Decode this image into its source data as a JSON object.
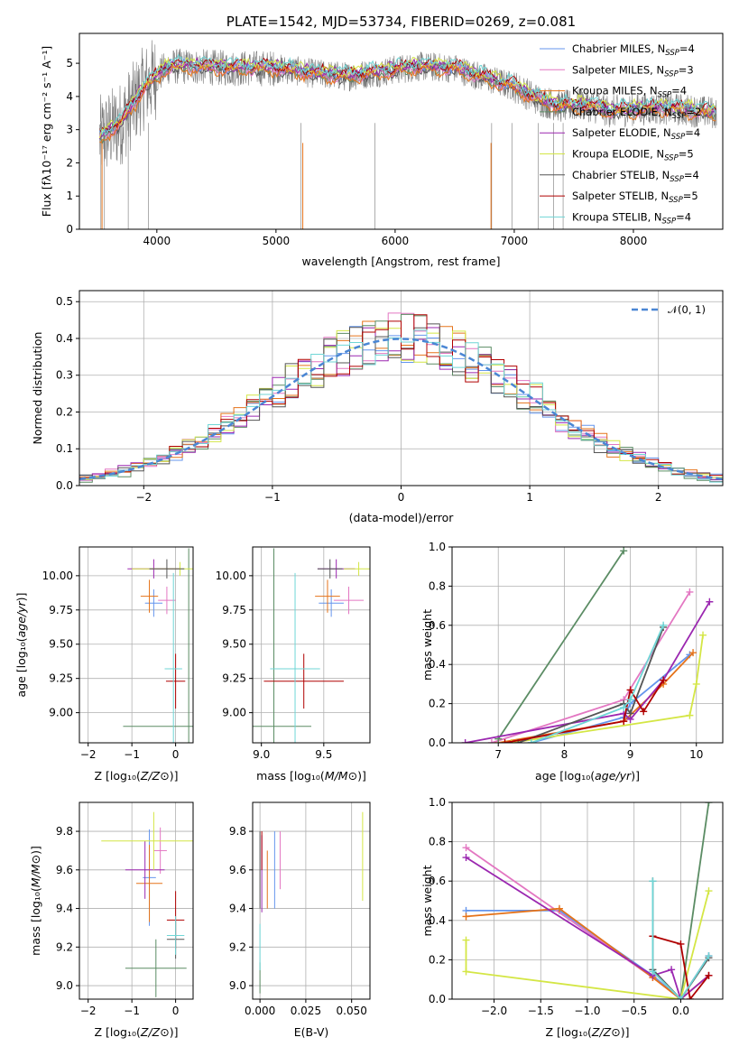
{
  "colors": [
    "#6495ed",
    "#e377c2",
    "#e5731a",
    "#5b8c64",
    "#9b27b0",
    "#d4e645",
    "#555555",
    "#b00000",
    "#6fd6d6"
  ],
  "chart_data": [
    {
      "id": "spectrum",
      "type": "line",
      "title": "PLATE=1542, MJD=53734, FIBERID=0269, z=0.081",
      "xlabel": "wavelength [Angstrom, rest frame]",
      "ylabel": "Flux [fλ10⁻¹⁷ erg cm⁻² s⁻¹ A⁻¹]",
      "xlim": [
        3350,
        8750
      ],
      "ylim": [
        0,
        5.9
      ],
      "xticks": [
        "4000",
        "5000",
        "6000",
        "7000",
        "8000"
      ],
      "yticks": [
        "0",
        "1",
        "2",
        "3",
        "4",
        "5"
      ],
      "legend_position": "right",
      "legend": [
        "Chabrier MILES, N_SSP=4",
        "Salpeter MILES, N_SSP=3",
        "Kroupa MILES, N_SSP=4",
        "Chabrier ELODIE, N_SSP=2",
        "Salpeter ELODIE, N_SSP=4",
        "Kroupa ELODIE, N_SSP=5",
        "Chabrier STELIB, N_SSP=4",
        "Salpeter STELIB, N_SSP=5",
        "Kroupa STELIB, N_SSP=4"
      ],
      "legend_text": [
        [
          "Chabrier MILES, N",
          "SSP",
          "=4"
        ],
        [
          "Salpeter MILES, N",
          "SSP",
          "=3"
        ],
        [
          "Kroupa MILES, N",
          "SSP",
          "=4"
        ],
        [
          "Chabrier ELODIE, N",
          "SSP",
          "=2"
        ],
        [
          "Salpeter ELODIE, N",
          "SSP",
          "=4"
        ],
        [
          "Kroupa ELODIE, N",
          "SSP",
          "=5"
        ],
        [
          "Chabrier STELIB, N",
          "SSP",
          "=4"
        ],
        [
          "Salpeter STELIB, N",
          "SSP",
          "=5"
        ],
        [
          "Kroupa STELIB, N",
          "SSP",
          "=4"
        ]
      ],
      "continuum": {
        "x": [
          3500,
          3700,
          3900,
          4100,
          4300,
          4600,
          5000,
          5300,
          5600,
          5900,
          6200,
          6500,
          6800,
          7000,
          7200,
          7400,
          7600,
          7800,
          8000,
          8200,
          8400,
          8700
        ],
        "y": [
          2.7,
          3.2,
          4.3,
          4.9,
          4.9,
          4.85,
          4.85,
          4.7,
          4.6,
          4.75,
          4.9,
          4.85,
          4.5,
          4.3,
          3.9,
          3.7,
          3.75,
          3.55,
          3.6,
          3.65,
          3.6,
          3.5
        ]
      }
    },
    {
      "id": "residuals",
      "type": "step",
      "xlabel": "(data-model)/error",
      "ylabel": "Normed distribution",
      "xlim": [
        -2.5,
        2.5
      ],
      "ylim": [
        0,
        0.53
      ],
      "xticks": [
        "−2",
        "−1",
        "0",
        "1",
        "2"
      ],
      "yticks": [
        "0.0",
        "0.1",
        "0.2",
        "0.3",
        "0.4",
        "0.5"
      ],
      "legend": [
        "𝒩(0, 1)"
      ],
      "legend_position": "upper right",
      "bin_width": 0.1,
      "x_start": -2.5,
      "reference": "normal(0,1)"
    },
    {
      "id": "age-vs-Z",
      "type": "errorbar",
      "xlabel_parts": [
        "Z [log₁₀(",
        "Z/Z⊙",
        ")]"
      ],
      "ylabel_parts": [
        "age  [log₁₀(",
        "age/yr",
        ")]"
      ],
      "xlim": [
        -2.2,
        0.4
      ],
      "ylim": [
        8.78,
        10.21
      ],
      "xticks": [
        "−2",
        "−1",
        "0"
      ],
      "yticks": [
        "9.00",
        "9.25",
        "9.50",
        "9.75",
        "10.00"
      ],
      "points": [
        {
          "c": 0,
          "x": -0.5,
          "y": 9.8,
          "xe": 0.2,
          "ye": 0.1
        },
        {
          "c": 1,
          "x": -0.2,
          "y": 9.82,
          "xe": 0.2,
          "ye": 0.1
        },
        {
          "c": 2,
          "x": -0.6,
          "y": 9.85,
          "xe": 0.2,
          "ye": 0.12
        },
        {
          "c": 3,
          "x": 0.3,
          "y": 8.9,
          "xe": 1.5,
          "ye": 1.3
        },
        {
          "c": 4,
          "x": -0.5,
          "y": 10.05,
          "xe": 0.6,
          "ye": 0.07
        },
        {
          "c": 5,
          "x": 0.1,
          "y": 10.05,
          "xe": 1.1,
          "ye": 0.05
        },
        {
          "c": 6,
          "x": -0.2,
          "y": 10.05,
          "xe": 0.4,
          "ye": 0.07
        },
        {
          "c": 7,
          "x": 0.0,
          "y": 9.23,
          "xe": 0.22,
          "ye": 0.2
        },
        {
          "c": 8,
          "x": -0.05,
          "y": 9.32,
          "xe": 0.2,
          "ye": 0.7
        }
      ]
    },
    {
      "id": "age-vs-mass",
      "type": "errorbar",
      "xlabel_parts": [
        "mass [log₁₀(",
        "M/M⊙",
        ")]"
      ],
      "ylabel_parts": [
        "",
        "",
        ""
      ],
      "xlim": [
        8.93,
        9.87
      ],
      "ylim": [
        8.78,
        10.21
      ],
      "xticks": [
        "9.0",
        "9.5"
      ],
      "yticks": [
        "9.00",
        "9.25",
        "9.50",
        "9.75",
        "10.00"
      ],
      "points": [
        {
          "c": 0,
          "x": 9.56,
          "y": 9.8,
          "xe": 0.1,
          "ye": 0.1
        },
        {
          "c": 1,
          "x": 9.7,
          "y": 9.82,
          "xe": 0.12,
          "ye": 0.1
        },
        {
          "c": 2,
          "x": 9.53,
          "y": 9.85,
          "xe": 0.1,
          "ye": 0.12
        },
        {
          "c": 3,
          "x": 9.1,
          "y": 8.9,
          "xe": 0.3,
          "ye": 1.3
        },
        {
          "c": 4,
          "x": 9.6,
          "y": 10.05,
          "xe": 0.15,
          "ye": 0.07
        },
        {
          "c": 5,
          "x": 9.78,
          "y": 10.05,
          "xe": 0.12,
          "ye": 0.05
        },
        {
          "c": 6,
          "x": 9.55,
          "y": 10.05,
          "xe": 0.1,
          "ye": 0.07
        },
        {
          "c": 7,
          "x": 9.34,
          "y": 9.23,
          "xe": 0.32,
          "ye": 0.2
        },
        {
          "c": 8,
          "x": 9.27,
          "y": 9.32,
          "xe": 0.2,
          "ye": 0.7
        }
      ]
    },
    {
      "id": "mass-weight-vs-age",
      "type": "line",
      "xlabel_parts": [
        "age  [log₁₀(",
        "age/yr",
        ")]"
      ],
      "ylabel": "mass weight",
      "xlim": [
        6.3,
        10.4
      ],
      "ylim": [
        0,
        1
      ],
      "xticks": [
        "7",
        "8",
        "9",
        "10"
      ],
      "yticks": [
        "0.0",
        "0.2",
        "0.4",
        "0.6",
        "0.8",
        "1.0"
      ],
      "series": [
        {
          "c": 0,
          "x": [
            7.5,
            8.9,
            9.0,
            9.9
          ],
          "y": [
            0.0,
            0.13,
            0.2,
            0.45
          ]
        },
        {
          "c": 1,
          "x": [
            6.9,
            8.9,
            9.9
          ],
          "y": [
            0.0,
            0.22,
            0.77
          ]
        },
        {
          "c": 2,
          "x": [
            7.0,
            8.9,
            9.5,
            9.95
          ],
          "y": [
            0.0,
            0.11,
            0.3,
            0.46
          ]
        },
        {
          "c": 3,
          "x": [
            7.0,
            8.9
          ],
          "y": [
            0.02,
            0.98
          ]
        },
        {
          "c": 4,
          "x": [
            6.5,
            8.9,
            9.0,
            9.5,
            10.2
          ],
          "y": [
            0.0,
            0.15,
            0.12,
            0.32,
            0.72
          ]
        },
        {
          "c": 5,
          "x": [
            7.2,
            9.9,
            10.0,
            10.1
          ],
          "y": [
            0.0,
            0.14,
            0.3,
            0.55
          ]
        },
        {
          "c": 6,
          "x": [
            7.3,
            8.9,
            9.0,
            9.5
          ],
          "y": [
            0.0,
            0.2,
            0.15,
            0.59
          ]
        },
        {
          "c": 7,
          "x": [
            7.1,
            8.9,
            9.0,
            9.2,
            9.5
          ],
          "y": [
            0.0,
            0.11,
            0.27,
            0.16,
            0.32
          ]
        },
        {
          "c": 8,
          "x": [
            7.5,
            8.9,
            9.0,
            9.5
          ],
          "y": [
            0.0,
            0.18,
            0.22,
            0.6
          ]
        }
      ]
    },
    {
      "id": "mass-vs-Z",
      "type": "errorbar",
      "xlabel_parts": [
        "Z [log₁₀(",
        "Z/Z⊙",
        ")]"
      ],
      "ylabel_parts": [
        "mass [log₁₀(",
        "M/M⊙",
        ")]"
      ],
      "xlim": [
        -2.2,
        0.4
      ],
      "ylim": [
        8.93,
        9.95
      ],
      "xticks": [
        "−2",
        "−1",
        "0"
      ],
      "yticks": [
        "9.0",
        "9.2",
        "9.4",
        "9.6",
        "9.8"
      ],
      "points": [
        {
          "c": 0,
          "x": -0.6,
          "y": 9.56,
          "xe": 0.15,
          "ye": 0.25
        },
        {
          "c": 1,
          "x": -0.35,
          "y": 9.7,
          "xe": 0.15,
          "ye": 0.12
        },
        {
          "c": 2,
          "x": -0.6,
          "y": 9.53,
          "xe": 0.3,
          "ye": 0.2
        },
        {
          "c": 3,
          "x": -0.45,
          "y": 9.09,
          "xe": 0.7,
          "ye": 0.15
        },
        {
          "c": 4,
          "x": -0.7,
          "y": 9.6,
          "xe": 0.45,
          "ye": 0.15
        },
        {
          "c": 5,
          "x": -0.5,
          "y": 9.75,
          "xe": 1.2,
          "ye": 0.15
        },
        {
          "c": 6,
          "x": 0.0,
          "y": 9.24,
          "xe": 0.2,
          "ye": 0.1
        },
        {
          "c": 7,
          "x": 0.0,
          "y": 9.34,
          "xe": 0.2,
          "ye": 0.15
        },
        {
          "c": 8,
          "x": 0.0,
          "y": 9.26,
          "xe": 0.2,
          "ye": 0.1
        }
      ]
    },
    {
      "id": "mass-vs-EBV",
      "type": "errorbar",
      "xlabel": "E(B-V)",
      "ylabel_parts": [
        "",
        "",
        ""
      ],
      "xlim": [
        -0.004,
        0.06
      ],
      "ylim": [
        8.93,
        9.95
      ],
      "xticks": [
        "0.000",
        "0.025",
        "0.050"
      ],
      "yticks": [
        "9.0",
        "9.2",
        "9.4",
        "9.6",
        "9.8"
      ],
      "points": [
        {
          "c": 0,
          "x": 0.008,
          "y": 9.6,
          "xe": 0.0,
          "ye": 0.2
        },
        {
          "c": 1,
          "x": 0.011,
          "y": 9.65,
          "xe": 0.0,
          "ye": 0.15
        },
        {
          "c": 2,
          "x": 0.004,
          "y": 9.55,
          "xe": 0.0,
          "ye": 0.15
        },
        {
          "c": 3,
          "x": 0.0,
          "y": 9.04,
          "xe": 0.0,
          "ye": 0.08
        },
        {
          "c": 4,
          "x": 0.001,
          "y": 9.58,
          "xe": 0.0,
          "ye": 0.2
        },
        {
          "c": 5,
          "x": 0.056,
          "y": 9.67,
          "xe": 0.0,
          "ye": 0.23
        },
        {
          "c": 6,
          "x": 0.0,
          "y": 9.6,
          "xe": 0.0,
          "ye": 0.2
        },
        {
          "c": 7,
          "x": 0.001,
          "y": 9.7,
          "xe": 0.0,
          "ye": 0.1
        },
        {
          "c": 8,
          "x": 0.0,
          "y": 9.2,
          "xe": 0.0,
          "ye": 0.12
        }
      ]
    },
    {
      "id": "mass-weight-vs-Z",
      "type": "line",
      "xlabel_parts": [
        "Z [log₁₀(",
        "Z/Z⊙",
        ")]"
      ],
      "ylabel": "mass weight",
      "xlim": [
        -2.45,
        0.45
      ],
      "ylim": [
        0,
        1
      ],
      "xticks": [
        "−2.0",
        "−1.5",
        "−1.0",
        "−0.5",
        "0.0"
      ],
      "yticks": [
        "0.0",
        "0.2",
        "0.4",
        "0.6",
        "0.8",
        "1.0"
      ],
      "series": [
        {
          "c": 0,
          "x": [
            -2.3,
            -1.3,
            -0.3,
            0.0,
            0.3
          ],
          "y": [
            0.45,
            0.45,
            0.12,
            0.0,
            0.22
          ]
        },
        {
          "c": 1,
          "x": [
            -2.3,
            -0.3,
            0.0,
            0.3
          ],
          "y": [
            0.77,
            0.11,
            0.0,
            0.22
          ]
        },
        {
          "c": 2,
          "x": [
            -2.3,
            -1.3,
            -0.3,
            0.0,
            0.3
          ],
          "y": [
            0.42,
            0.46,
            0.11,
            0.0,
            0.12
          ]
        },
        {
          "c": 3,
          "x": [
            0.0,
            0.3
          ],
          "y": [
            0.0,
            1.0
          ]
        },
        {
          "c": 4,
          "x": [
            -2.3,
            -0.3,
            -0.1,
            0.0,
            0.3
          ],
          "y": [
            0.72,
            0.12,
            0.15,
            0.0,
            0.12
          ]
        },
        {
          "c": 5,
          "x": [
            -2.3,
            -2.3,
            0.0,
            0.3
          ],
          "y": [
            0.3,
            0.14,
            0.0,
            0.55
          ]
        },
        {
          "c": 6,
          "x": [
            -0.3,
            -0.3,
            0.0,
            0.3
          ],
          "y": [
            0.6,
            0.15,
            0.0,
            0.21
          ]
        },
        {
          "c": 7,
          "x": [
            -0.3,
            0.0,
            0.1,
            0.3
          ],
          "y": [
            0.32,
            0.28,
            0.0,
            0.12
          ]
        },
        {
          "c": 8,
          "x": [
            -0.3,
            -0.3,
            0.0,
            0.3
          ],
          "y": [
            0.6,
            0.14,
            0.0,
            0.22
          ]
        }
      ]
    }
  ]
}
